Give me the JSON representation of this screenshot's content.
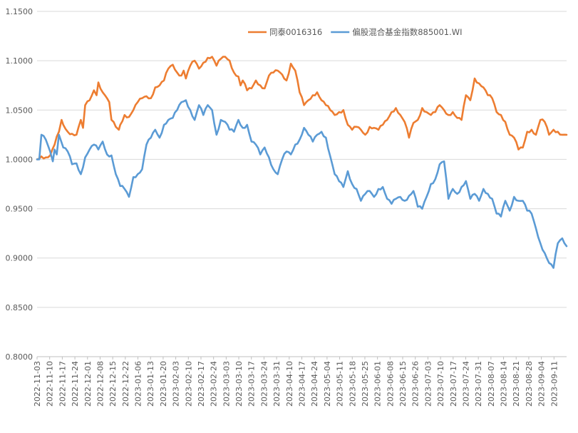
{
  "chart_data": {
    "type": "line",
    "title": "",
    "xlabel": "",
    "ylabel": "",
    "ylim": [
      0.8,
      1.15
    ],
    "y_ticks": [
      "0.8000",
      "0.8500",
      "0.9000",
      "0.9500",
      "1.0000",
      "1.0500",
      "1.1000",
      "1.1500"
    ],
    "x_tick_labels": [
      "2022-11-03",
      "2022-11-10",
      "2022-11-17",
      "2022-11-24",
      "2022-12-01",
      "2022-12-08",
      "2022-12-15",
      "2022-12-22",
      "2023-01-06",
      "2023-01-13",
      "2023-01-20",
      "2023-02-03",
      "2023-02-10",
      "2023-02-17",
      "2023-02-24",
      "2023-03-03",
      "2023-03-10",
      "2023-03-17",
      "2023-03-24",
      "2023-03-31",
      "2023-04-10",
      "2023-04-17",
      "2023-04-24",
      "2023-05-04",
      "2023-05-11",
      "2023-05-18",
      "2023-05-25",
      "2023-06-01",
      "2023-06-08",
      "2023-06-15",
      "2023-06-26",
      "2023-07-03",
      "2023-07-10",
      "2023-07-17",
      "2023-07-24",
      "2023-07-31",
      "2023-08-07",
      "2023-08-14",
      "2023-08-21",
      "2023-08-28",
      "2023-09-04",
      "2023-09-11"
    ],
    "grid": true,
    "legend_position": "top-center",
    "series": [
      {
        "name": "同泰0016316",
        "color": "#ed7d31",
        "anchors": [
          [
            0,
            1.0
          ],
          [
            1,
            1.003
          ],
          [
            2,
            1.002
          ],
          [
            3,
            1.004
          ],
          [
            4,
            1.015
          ],
          [
            5,
            1.028
          ],
          [
            5.6,
            1.04
          ],
          [
            6,
            1.035
          ],
          [
            7,
            1.028
          ],
          [
            8,
            1.026
          ],
          [
            9,
            1.025
          ],
          [
            10,
            1.04
          ],
          [
            10.5,
            1.032
          ],
          [
            11,
            1.055
          ],
          [
            12,
            1.06
          ],
          [
            13,
            1.07
          ],
          [
            13.6,
            1.065
          ],
          [
            14,
            1.078
          ],
          [
            15,
            1.068
          ],
          [
            16,
            1.062
          ],
          [
            16.5,
            1.058
          ],
          [
            17,
            1.04
          ],
          [
            18,
            1.033
          ],
          [
            18.7,
            1.03
          ],
          [
            19,
            1.035
          ],
          [
            20,
            1.045
          ],
          [
            21,
            1.043
          ],
          [
            22,
            1.05
          ],
          [
            23,
            1.058
          ],
          [
            24,
            1.062
          ],
          [
            25,
            1.064
          ],
          [
            26,
            1.062
          ],
          [
            27,
            1.073
          ],
          [
            28,
            1.075
          ],
          [
            29,
            1.08
          ],
          [
            30,
            1.092
          ],
          [
            31,
            1.096
          ],
          [
            32,
            1.088
          ],
          [
            33,
            1.085
          ],
          [
            33.5,
            1.09
          ],
          [
            34,
            1.082
          ],
          [
            35,
            1.095
          ],
          [
            36,
            1.1
          ],
          [
            37,
            1.092
          ],
          [
            38,
            1.098
          ],
          [
            39,
            1.103
          ],
          [
            40,
            1.104
          ],
          [
            41,
            1.095
          ],
          [
            42,
            1.102
          ],
          [
            43,
            1.104
          ],
          [
            44,
            1.1
          ],
          [
            45,
            1.088
          ],
          [
            46,
            1.084
          ],
          [
            46.5,
            1.075
          ],
          [
            47,
            1.08
          ],
          [
            48,
            1.07
          ],
          [
            49,
            1.072
          ],
          [
            50,
            1.08
          ],
          [
            51,
            1.075
          ],
          [
            52,
            1.072
          ],
          [
            53,
            1.085
          ],
          [
            54,
            1.088
          ],
          [
            55,
            1.09
          ],
          [
            56,
            1.086
          ],
          [
            57,
            1.08
          ],
          [
            58,
            1.097
          ],
          [
            59,
            1.09
          ],
          [
            60,
            1.068
          ],
          [
            61,
            1.055
          ],
          [
            62,
            1.06
          ],
          [
            63,
            1.065
          ],
          [
            64,
            1.068
          ],
          [
            65,
            1.06
          ],
          [
            66,
            1.055
          ],
          [
            67,
            1.05
          ],
          [
            68,
            1.045
          ],
          [
            69,
            1.048
          ],
          [
            70,
            1.05
          ],
          [
            71,
            1.035
          ],
          [
            72,
            1.03
          ],
          [
            73,
            1.033
          ],
          [
            74,
            1.03
          ],
          [
            75,
            1.025
          ],
          [
            76,
            1.033
          ],
          [
            77,
            1.032
          ],
          [
            78,
            1.03
          ],
          [
            79,
            1.035
          ],
          [
            80,
            1.04
          ],
          [
            81,
            1.048
          ],
          [
            82,
            1.052
          ],
          [
            83,
            1.045
          ],
          [
            84,
            1.038
          ],
          [
            85,
            1.022
          ],
          [
            86,
            1.037
          ],
          [
            87,
            1.04
          ],
          [
            88,
            1.052
          ],
          [
            89,
            1.048
          ],
          [
            90,
            1.045
          ],
          [
            91,
            1.048
          ],
          [
            92,
            1.055
          ],
          [
            93,
            1.05
          ],
          [
            94,
            1.045
          ],
          [
            95,
            1.048
          ],
          [
            96,
            1.042
          ],
          [
            97,
            1.04
          ],
          [
            98,
            1.065
          ],
          [
            99,
            1.06
          ],
          [
            100,
            1.082
          ],
          [
            101,
            1.077
          ],
          [
            102,
            1.073
          ],
          [
            103,
            1.065
          ],
          [
            104,
            1.062
          ],
          [
            105,
            1.048
          ],
          [
            106,
            1.045
          ],
          [
            107,
            1.038
          ],
          [
            108,
            1.025
          ],
          [
            109,
            1.022
          ],
          [
            110,
            1.01
          ],
          [
            111,
            1.012
          ],
          [
            112,
            1.028
          ],
          [
            113,
            1.03
          ],
          [
            114,
            1.025
          ],
          [
            115,
            1.04
          ],
          [
            116,
            1.038
          ],
          [
            117,
            1.025
          ],
          [
            118,
            1.03
          ],
          [
            119,
            1.028
          ],
          [
            120,
            1.025
          ],
          [
            121,
            1.025
          ]
        ]
      },
      {
        "name": "偏股混合基金指数885001.WI",
        "color": "#5b9bd5",
        "anchors": [
          [
            0,
            1.0
          ],
          [
            0.5,
            1.0
          ],
          [
            1,
            1.025
          ],
          [
            2,
            1.02
          ],
          [
            3,
            1.008
          ],
          [
            3.6,
            0.998
          ],
          [
            4,
            1.01
          ],
          [
            4.5,
            1.005
          ],
          [
            5,
            1.025
          ],
          [
            6,
            1.012
          ],
          [
            7,
            1.008
          ],
          [
            8,
            0.995
          ],
          [
            9,
            0.996
          ],
          [
            10,
            0.985
          ],
          [
            11,
            1.002
          ],
          [
            12,
            1.01
          ],
          [
            13,
            1.015
          ],
          [
            14,
            1.01
          ],
          [
            15,
            1.018
          ],
          [
            16,
            1.005
          ],
          [
            17,
            1.004
          ],
          [
            18,
            0.985
          ],
          [
            19,
            0.973
          ],
          [
            20,
            0.97
          ],
          [
            21,
            0.962
          ],
          [
            22,
            0.982
          ],
          [
            23,
            0.985
          ],
          [
            24,
            0.99
          ],
          [
            25,
            1.015
          ],
          [
            26,
            1.022
          ],
          [
            27,
            1.03
          ],
          [
            28,
            1.022
          ],
          [
            29,
            1.035
          ],
          [
            30,
            1.04
          ],
          [
            31,
            1.042
          ],
          [
            32,
            1.05
          ],
          [
            33,
            1.058
          ],
          [
            34,
            1.06
          ],
          [
            35,
            1.05
          ],
          [
            36,
            1.04
          ],
          [
            37,
            1.055
          ],
          [
            38,
            1.045
          ],
          [
            39,
            1.055
          ],
          [
            40,
            1.05
          ],
          [
            41,
            1.025
          ],
          [
            42,
            1.04
          ],
          [
            43,
            1.038
          ],
          [
            44,
            1.03
          ],
          [
            45,
            1.028
          ],
          [
            46,
            1.04
          ],
          [
            47,
            1.032
          ],
          [
            48,
            1.035
          ],
          [
            49,
            1.018
          ],
          [
            50,
            1.015
          ],
          [
            51,
            1.005
          ],
          [
            52,
            1.012
          ],
          [
            53,
            1.002
          ],
          [
            54,
            0.99
          ],
          [
            55,
            0.985
          ],
          [
            56,
            1.0
          ],
          [
            57,
            1.008
          ],
          [
            58,
            1.005
          ],
          [
            59,
            1.015
          ],
          [
            60,
            1.02
          ],
          [
            61,
            1.032
          ],
          [
            62,
            1.025
          ],
          [
            63,
            1.018
          ],
          [
            64,
            1.025
          ],
          [
            65,
            1.028
          ],
          [
            66,
            1.022
          ],
          [
            67,
            1.003
          ],
          [
            68,
            0.985
          ],
          [
            69,
            0.978
          ],
          [
            70,
            0.972
          ],
          [
            71,
            0.988
          ],
          [
            72,
            0.975
          ],
          [
            73,
            0.97
          ],
          [
            74,
            0.958
          ],
          [
            75,
            0.965
          ],
          [
            76,
            0.968
          ],
          [
            77,
            0.962
          ],
          [
            78,
            0.97
          ],
          [
            79,
            0.972
          ],
          [
            80,
            0.96
          ],
          [
            81,
            0.955
          ],
          [
            82,
            0.96
          ],
          [
            83,
            0.962
          ],
          [
            84,
            0.958
          ],
          [
            85,
            0.963
          ],
          [
            86,
            0.968
          ],
          [
            87,
            0.952
          ],
          [
            88,
            0.95
          ],
          [
            89,
            0.962
          ],
          [
            90,
            0.975
          ],
          [
            91,
            0.98
          ],
          [
            92,
            0.995
          ],
          [
            93,
            0.998
          ],
          [
            94,
            0.96
          ],
          [
            95,
            0.97
          ],
          [
            96,
            0.965
          ],
          [
            97,
            0.972
          ],
          [
            98,
            0.978
          ],
          [
            99,
            0.96
          ],
          [
            100,
            0.965
          ],
          [
            101,
            0.958
          ],
          [
            102,
            0.97
          ],
          [
            103,
            0.965
          ],
          [
            104,
            0.96
          ],
          [
            105,
            0.945
          ],
          [
            106,
            0.942
          ],
          [
            107,
            0.958
          ],
          [
            108,
            0.948
          ],
          [
            109,
            0.962
          ],
          [
            110,
            0.958
          ],
          [
            111,
            0.958
          ],
          [
            112,
            0.948
          ],
          [
            113,
            0.945
          ],
          [
            114,
            0.93
          ],
          [
            115,
            0.915
          ],
          [
            116,
            0.905
          ],
          [
            117,
            0.895
          ],
          [
            118,
            0.89
          ],
          [
            119,
            0.915
          ],
          [
            120,
            0.92
          ],
          [
            121,
            0.912
          ]
        ]
      }
    ]
  }
}
